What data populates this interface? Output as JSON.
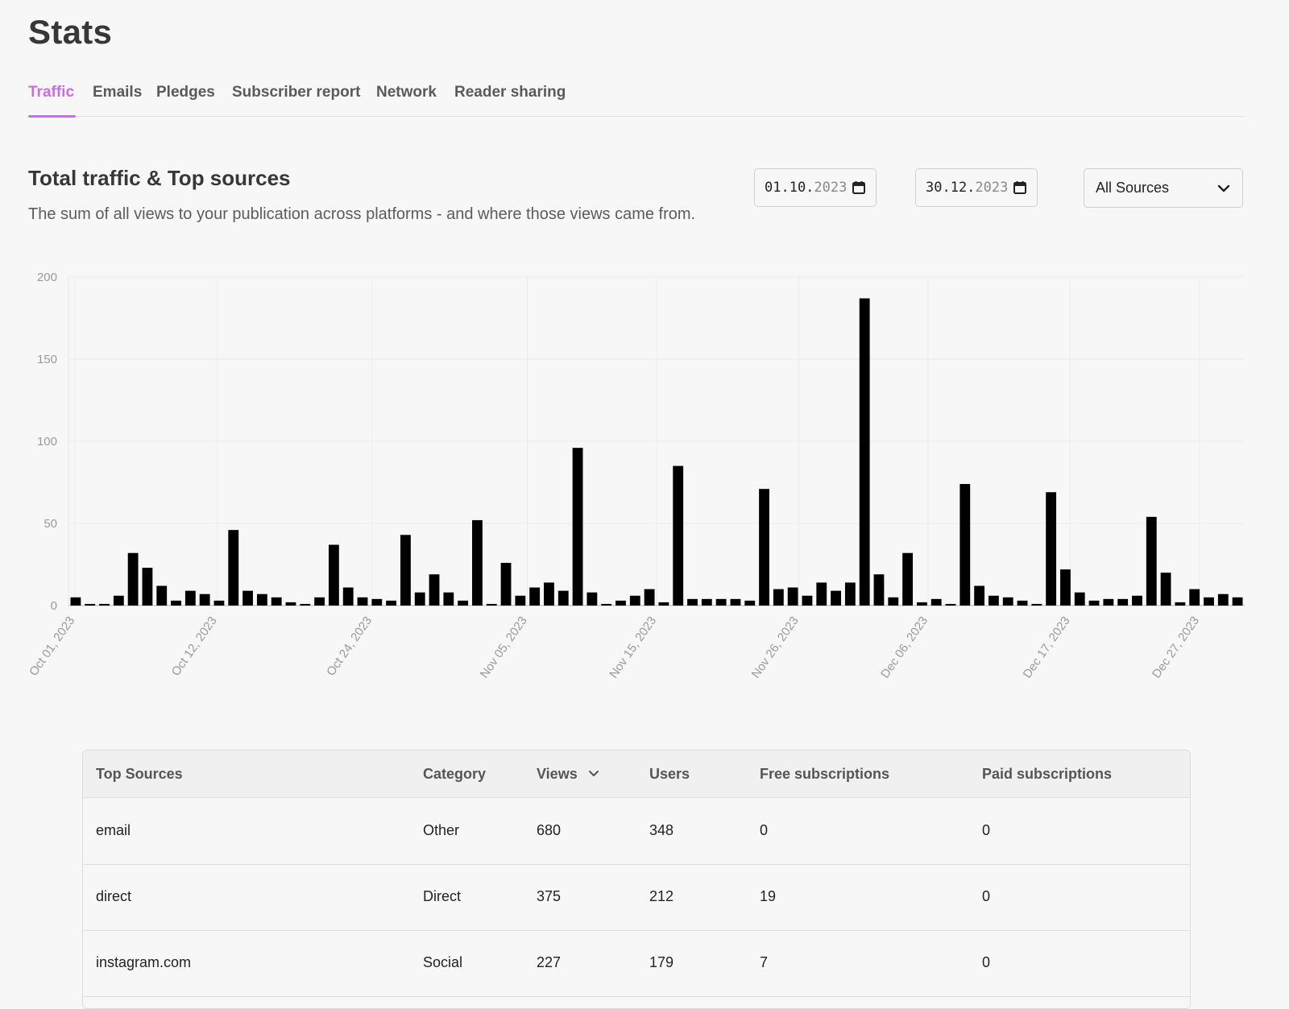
{
  "page": {
    "title": "Stats"
  },
  "tabs": [
    {
      "label": "Traffic",
      "active": true
    },
    {
      "label": "Emails"
    },
    {
      "label": "Pledges"
    },
    {
      "label": "Subscriber report"
    },
    {
      "label": "Network"
    },
    {
      "label": "Reader sharing"
    }
  ],
  "section": {
    "title": "Total traffic & Top sources",
    "description": "The sum of all views to your publication across platforms - and where those views came from."
  },
  "filters": {
    "start_date": {
      "day_month": "01.10.",
      "year": "2023"
    },
    "end_date": {
      "day_month": "30.12.",
      "year": "2023"
    },
    "source_select": "All Sources"
  },
  "colors": {
    "accent": "#cc6ce6",
    "bar": "#000000"
  },
  "chart_data": {
    "type": "bar",
    "ylim": [
      0,
      200
    ],
    "yticks": [
      0,
      50,
      100,
      150,
      200
    ],
    "x_start": "2023-10-01",
    "x_end": "2023-12-30",
    "xtick_labels": [
      "Oct 01, 2023",
      "Oct 12, 2023",
      "Oct 24, 2023",
      "Nov 05, 2023",
      "Nov 15, 2023",
      "Nov 26, 2023",
      "Dec 06, 2023",
      "Dec 17, 2023",
      "Dec 27, 2023"
    ],
    "values": [
      5,
      1,
      1,
      6,
      32,
      23,
      12,
      3,
      9,
      7,
      3,
      46,
      9,
      7,
      5,
      2,
      1,
      5,
      37,
      11,
      5,
      4,
      3,
      43,
      8,
      19,
      8,
      3,
      52,
      1,
      26,
      6,
      11,
      14,
      9,
      96,
      8,
      1,
      3,
      6,
      10,
      2,
      85,
      4,
      4,
      4,
      4,
      3,
      71,
      10,
      11,
      6,
      14,
      9,
      14,
      187,
      19,
      5,
      32,
      2,
      4,
      1,
      74,
      12,
      6,
      5,
      3,
      1,
      69,
      22,
      8,
      3,
      4,
      4,
      6,
      54,
      20,
      2,
      10,
      5,
      7,
      5
    ]
  },
  "table": {
    "headers": {
      "source": "Top Sources",
      "category": "Category",
      "views": "Views",
      "users": "Users",
      "free": "Free subscriptions",
      "paid": "Paid subscriptions"
    },
    "rows": [
      {
        "source": "email",
        "category": "Other",
        "views": "680",
        "users": "348",
        "free": "0",
        "paid": "0"
      },
      {
        "source": "direct",
        "category": "Direct",
        "views": "375",
        "users": "212",
        "free": "19",
        "paid": "0"
      },
      {
        "source": "instagram.com",
        "category": "Social",
        "views": "227",
        "users": "179",
        "free": "7",
        "paid": "0"
      }
    ]
  }
}
